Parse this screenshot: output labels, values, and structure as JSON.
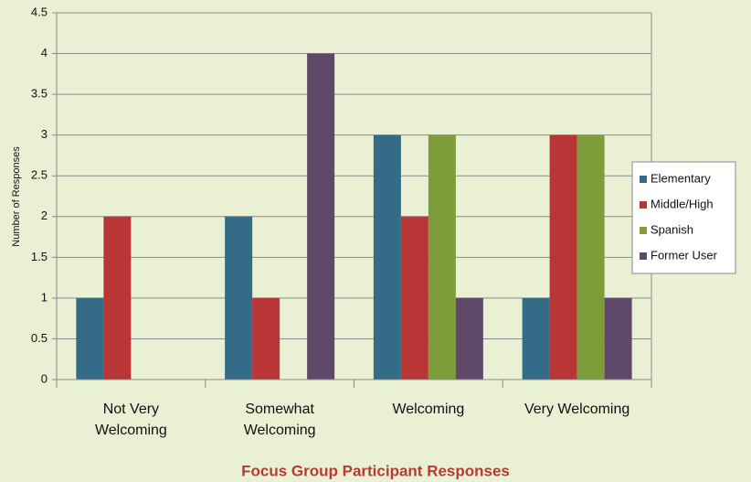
{
  "chart_data": {
    "type": "bar",
    "categories": [
      "Not Very Welcoming",
      "Somewhat Welcoming",
      "Welcoming",
      "Very Welcoming"
    ],
    "series": [
      {
        "name": "Elementary",
        "color": "#346b86",
        "values": [
          1,
          2,
          3,
          1
        ]
      },
      {
        "name": "Middle/High",
        "color": "#b93636",
        "values": [
          2,
          1,
          2,
          3
        ]
      },
      {
        "name": "Spanish",
        "color": "#7f9c3b",
        "values": [
          0,
          0,
          3,
          3
        ]
      },
      {
        "name": "Former User",
        "color": "#5f4869",
        "values": [
          0,
          4,
          1,
          1
        ]
      }
    ],
    "ylabel": "Number of Responses",
    "xlabel": "Focus Group Participant Responses",
    "ylim": [
      0,
      4.5
    ],
    "yticks": [
      0,
      0.5,
      1,
      1.5,
      2,
      2.5,
      3,
      3.5,
      4,
      4.5
    ],
    "grid": true,
    "legend": "right"
  }
}
